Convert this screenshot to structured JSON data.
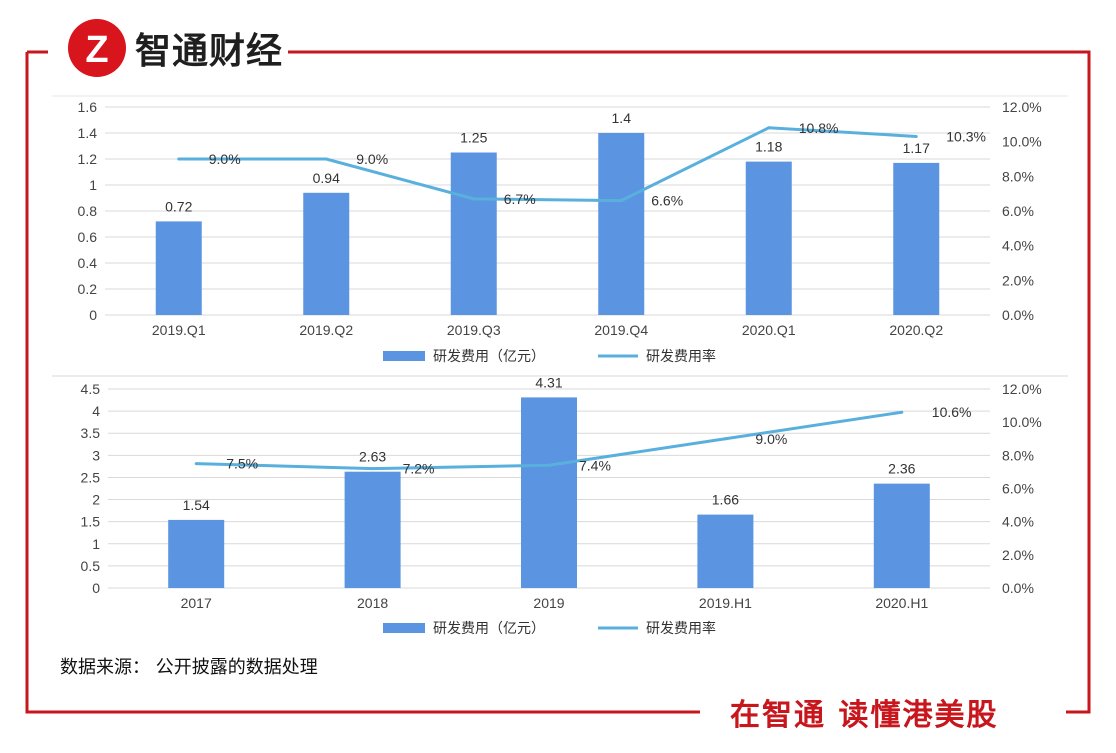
{
  "header": {
    "brand_name": "智通财经",
    "logo_letter": "Z"
  },
  "footer": {
    "slogan": "在智通 读懂港美股"
  },
  "source_note": "数据来源： 公开披露的数据处理",
  "colors": {
    "bar": "#5b94e1",
    "line": "#59b0dd",
    "frame": "#c8161d",
    "axis": "#d9d9d9"
  },
  "chart_data": [
    {
      "type": "bar",
      "categories": [
        "2019.Q1",
        "2019.Q2",
        "2019.Q3",
        "2019.Q4",
        "2020.Q1",
        "2020.Q2"
      ],
      "series": [
        {
          "name": "研发费用（亿元）",
          "type": "bar",
          "axis": "left",
          "values": [
            0.72,
            0.94,
            1.25,
            1.4,
            1.18,
            1.17
          ],
          "labels": [
            "0.72",
            "0.94",
            "1.25",
            "1.4",
            "1.18",
            "1.17"
          ]
        },
        {
          "name": "研发费用率",
          "type": "line",
          "axis": "right",
          "values": [
            9.0,
            9.0,
            6.7,
            6.6,
            10.8,
            10.3
          ],
          "labels": [
            "9.0%",
            "9.0%",
            "6.7%",
            "6.6%",
            "10.8%",
            "10.3%"
          ]
        }
      ],
      "ylim": [
        0,
        1.6
      ],
      "yticks": [
        "0",
        "0.2",
        "0.4",
        "0.6",
        "0.8",
        "1",
        "1.2",
        "1.4",
        "1.6"
      ],
      "y2lim": [
        0,
        12
      ],
      "y2ticks": [
        "0.0%",
        "2.0%",
        "4.0%",
        "6.0%",
        "8.0%",
        "10.0%",
        "12.0%"
      ],
      "legend": "bottom"
    },
    {
      "type": "bar",
      "categories": [
        "2017",
        "2018",
        "2019",
        "2019.H1",
        "2020.H1"
      ],
      "series": [
        {
          "name": "研发费用（亿元）",
          "type": "bar",
          "axis": "left",
          "values": [
            1.54,
            2.63,
            4.31,
            1.66,
            2.36
          ],
          "labels": [
            "1.54",
            "2.63",
            "4.31",
            "1.66",
            "2.36"
          ]
        },
        {
          "name": "研发费用率",
          "type": "line",
          "axis": "right",
          "values": [
            7.5,
            7.2,
            7.4,
            9.0,
            10.6
          ],
          "labels": [
            "7.5%",
            "7.2%",
            "7.4%",
            "9.0%",
            "10.6%"
          ]
        }
      ],
      "ylim": [
        0,
        4.5
      ],
      "yticks": [
        "0",
        "0.5",
        "1",
        "1.5",
        "2",
        "2.5",
        "3",
        "3.5",
        "4",
        "4.5"
      ],
      "y2lim": [
        0,
        12
      ],
      "y2ticks": [
        "0.0%",
        "2.0%",
        "4.0%",
        "6.0%",
        "8.0%",
        "10.0%",
        "12.0%"
      ],
      "legend": "bottom"
    }
  ]
}
